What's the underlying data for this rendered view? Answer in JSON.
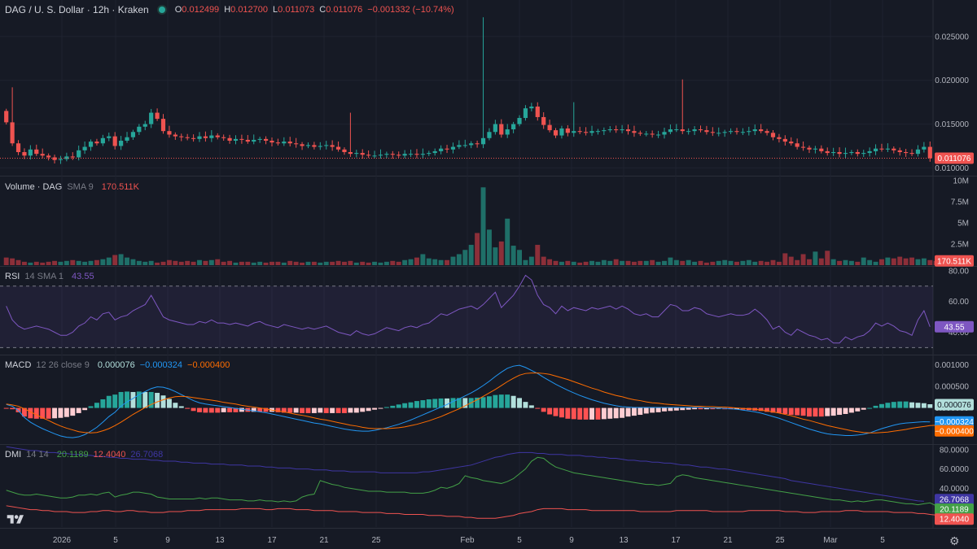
{
  "header": {
    "symbol": "DAG / U. S. Dollar · 12h · Kraken",
    "o_label": "O",
    "o": "0.012499",
    "h_label": "H",
    "h": "0.012700",
    "l_label": "L",
    "l": "0.011073",
    "c_label": "C",
    "c": "0.011076",
    "change": "−0.001332 (−10.74%)"
  },
  "volume_legend": {
    "title": "Volume · DAG",
    "params": "SMA 9",
    "value": "170.511K"
  },
  "rsi_legend": {
    "title": "RSI",
    "params": "14 SMA 1",
    "value": "43.55"
  },
  "macd_legend": {
    "title": "MACD",
    "params": "12 26 close 9",
    "hist": "0.000076",
    "macd": "−0.000324",
    "signal": "−0.000400"
  },
  "dmi_legend": {
    "title": "DMI",
    "params": "14 14",
    "plus": "20.1189",
    "minus": "12.4040",
    "adx": "26.7068"
  },
  "colors": {
    "up": "#26a69a",
    "down": "#ef5350",
    "rsi": "#7e57c2",
    "macd": "#2196f3",
    "signal": "#ff6d00",
    "adx": "#3f36a3",
    "plus_di": "#43a047",
    "minus_di": "#ef5350",
    "bg": "#161a25"
  },
  "chart_data": [
    {
      "type": "candlestick",
      "title": "DAG / U. S. Dollar · 12h · Kraken",
      "x_ticks": [
        "2026",
        "5",
        "9",
        "13",
        "17",
        "21",
        "25",
        "Feb",
        "5",
        "9",
        "13",
        "17",
        "21",
        "25",
        "Mar",
        "5"
      ],
      "y_ticks": [
        "0.025000",
        "0.020000",
        "0.015000",
        "0.010000"
      ],
      "ylim": [
        0.0092,
        0.0275
      ],
      "last_price_label": "0.011076",
      "close": [
        0.0152,
        0.0128,
        0.0118,
        0.0114,
        0.0121,
        0.0116,
        0.0114,
        0.0112,
        0.0109,
        0.011,
        0.0113,
        0.0112,
        0.012,
        0.0124,
        0.013,
        0.0128,
        0.0134,
        0.0136,
        0.0125,
        0.0131,
        0.0135,
        0.0141,
        0.0147,
        0.015,
        0.0163,
        0.0156,
        0.0142,
        0.0138,
        0.0136,
        0.0135,
        0.0134,
        0.0133,
        0.0136,
        0.0134,
        0.0137,
        0.0135,
        0.0134,
        0.0131,
        0.0133,
        0.0132,
        0.013,
        0.0132,
        0.0133,
        0.0131,
        0.0129,
        0.0128,
        0.013,
        0.0128,
        0.0127,
        0.0125,
        0.0126,
        0.0124,
        0.0125,
        0.0126,
        0.0124,
        0.0121,
        0.0118,
        0.0116,
        0.0117,
        0.0115,
        0.0114,
        0.0114,
        0.0115,
        0.0116,
        0.0115,
        0.0114,
        0.0116,
        0.0116,
        0.0115,
        0.0116,
        0.0117,
        0.0119,
        0.0122,
        0.0121,
        0.0124,
        0.0126,
        0.0126,
        0.0128,
        0.0127,
        0.0134,
        0.0141,
        0.015,
        0.0138,
        0.0144,
        0.015,
        0.0157,
        0.0168,
        0.017,
        0.0158,
        0.0149,
        0.0143,
        0.0137,
        0.0145,
        0.014,
        0.0142,
        0.0141,
        0.014,
        0.0142,
        0.0142,
        0.0143,
        0.0144,
        0.0143,
        0.0144,
        0.0142,
        0.014,
        0.0139,
        0.0139,
        0.0138,
        0.0138,
        0.0141,
        0.0144,
        0.0144,
        0.0142,
        0.0142,
        0.0144,
        0.0143,
        0.0141,
        0.014,
        0.014,
        0.0141,
        0.0142,
        0.0141,
        0.0141,
        0.0142,
        0.0144,
        0.0142,
        0.014,
        0.0135,
        0.0133,
        0.013,
        0.0128,
        0.0124,
        0.0123,
        0.0121,
        0.0122,
        0.0119,
        0.0117,
        0.0118,
        0.0116,
        0.0117,
        0.0118,
        0.0116,
        0.0117,
        0.0119,
        0.0122,
        0.0121,
        0.0122,
        0.012,
        0.0118,
        0.0117,
        0.0116,
        0.0121,
        0.0124,
        0.0111
      ]
    },
    {
      "type": "bar",
      "title": "Volume · DAG",
      "y_ticks": [
        "10M",
        "7.5M",
        "5M",
        "2.5M"
      ],
      "ylim": [
        0,
        10000000
      ],
      "last_value_label": "170.511K",
      "values_millions": [
        0.9,
        0.8,
        0.6,
        0.4,
        0.3,
        0.4,
        0.3,
        0.4,
        0.5,
        0.4,
        0.5,
        0.6,
        0.5,
        0.4,
        0.5,
        0.6,
        0.7,
        0.9,
        1.2,
        1.3,
        0.9,
        0.7,
        0.5,
        0.4,
        0.5,
        0.3,
        0.4,
        0.6,
        0.5,
        0.4,
        0.5,
        0.4,
        0.6,
        0.5,
        0.6,
        0.7,
        0.4,
        0.5,
        0.3,
        0.4,
        0.4,
        0.3,
        0.4,
        0.3,
        0.4,
        0.4,
        0.3,
        0.5,
        0.4,
        0.3,
        0.4,
        0.4,
        0.3,
        0.4,
        0.4,
        0.5,
        0.4,
        0.5,
        0.3,
        0.4,
        0.3,
        0.4,
        0.3,
        0.4,
        0.5,
        0.4,
        0.6,
        0.7,
        0.9,
        1.3,
        0.8,
        0.7,
        0.6,
        0.6,
        1.0,
        1.3,
        1.8,
        2.4,
        3.8,
        9.2,
        4.2,
        2.1,
        2.8,
        5.5,
        2.3,
        1.8,
        0.6,
        1.0,
        2.4,
        1.0,
        0.7,
        0.5,
        0.4,
        0.5,
        0.4,
        0.3,
        0.4,
        0.5,
        0.4,
        0.6,
        0.5,
        0.7,
        0.5,
        0.5,
        0.4,
        0.5,
        0.5,
        0.6,
        0.4,
        0.5,
        0.9,
        0.6,
        0.5,
        0.6,
        0.4,
        0.5,
        0.3,
        0.4,
        0.5,
        0.6,
        0.5,
        0.4,
        0.5,
        0.6,
        0.4,
        0.5,
        0.4,
        0.6,
        0.4,
        1.4,
        1.0,
        0.6,
        1.3,
        0.7,
        1.6,
        0.8,
        1.7,
        0.7,
        0.5,
        0.6,
        0.5,
        0.4,
        0.9,
        0.6,
        0.4,
        0.7,
        0.9,
        0.8,
        1.0,
        0.8,
        0.9,
        0.7,
        0.8,
        0.6,
        0.5,
        0.6,
        0.17
      ]
    },
    {
      "type": "line",
      "title": "RSI",
      "y_ticks": [
        "80.00",
        "60.00",
        "40.00"
      ],
      "bands": [
        70,
        30
      ],
      "ylim": [
        26,
        82
      ],
      "last_value_label": "43.55",
      "values": [
        57,
        48,
        44,
        42,
        43,
        44,
        43,
        42,
        40,
        38,
        38,
        40,
        44,
        46,
        50,
        48,
        52,
        53,
        48,
        50,
        51,
        54,
        56,
        58,
        64,
        57,
        50,
        48,
        47,
        46,
        45,
        45,
        47,
        46,
        48,
        46,
        46,
        45,
        46,
        45,
        44,
        46,
        47,
        45,
        44,
        43,
        45,
        44,
        43,
        42,
        43,
        42,
        43,
        44,
        42,
        40,
        39,
        38,
        41,
        39,
        38,
        39,
        41,
        43,
        42,
        41,
        43,
        44,
        43,
        45,
        46,
        49,
        52,
        51,
        53,
        55,
        56,
        57,
        55,
        58,
        62,
        66,
        56,
        60,
        64,
        70,
        77,
        74,
        64,
        58,
        56,
        52,
        57,
        54,
        56,
        55,
        54,
        56,
        55,
        56,
        57,
        55,
        57,
        55,
        52,
        51,
        52,
        50,
        50,
        54,
        58,
        57,
        54,
        54,
        56,
        55,
        52,
        51,
        50,
        51,
        52,
        51,
        51,
        52,
        55,
        52,
        48,
        42,
        44,
        40,
        38,
        42,
        40,
        38,
        37,
        35,
        36,
        33,
        33,
        37,
        35,
        37,
        38,
        41,
        46,
        44,
        46,
        44,
        41,
        40,
        38,
        48,
        54,
        43.55
      ]
    },
    {
      "type": "bar+line",
      "title": "MACD",
      "y_ticks": [
        "0.001000",
        "0.000500",
        "0.000000",
        "−0.000324",
        "−0.000400"
      ],
      "ylim": [
        -0.00082,
        0.0012
      ],
      "macd": [
        8e-05,
        4e-05,
        -6e-05,
        -0.00022,
        -0.00033,
        -0.00041,
        -0.00048,
        -0.00054,
        -0.0006,
        -0.00065,
        -0.00068,
        -0.00069,
        -0.00067,
        -0.00062,
        -0.00054,
        -0.00045,
        -0.00033,
        -0.0002,
        -0.0001,
        4e-05,
        0.00014,
        0.00022,
        0.00031,
        0.00038,
        0.00045,
        0.00049,
        0.00048,
        0.00044,
        0.00038,
        0.00031,
        0.00024,
        0.00017,
        0.00012,
        9e-05,
        7e-05,
        5e-05,
        3e-05,
        1e-05,
        -1e-05,
        -3e-05,
        -5e-05,
        -7e-05,
        -9e-05,
        -0.00011,
        -0.00014,
        -0.00017,
        -0.0002,
        -0.00023,
        -0.00026,
        -0.00029,
        -0.00032,
        -0.00035,
        -0.00037,
        -0.0004,
        -0.00043,
        -0.00046,
        -0.00049,
        -0.00051,
        -0.00053,
        -0.00054,
        -0.00054,
        -0.00052,
        -0.00049,
        -0.00046,
        -0.00042,
        -0.00038,
        -0.00033,
        -0.00028,
        -0.00022,
        -0.00016,
        -0.0001,
        -4e-05,
        2e-05,
        8e-05,
        0.00015,
        0.00021,
        0.00028,
        0.00035,
        0.00043,
        0.00052,
        0.00062,
        0.00073,
        0.00083,
        0.00092,
        0.00097,
        0.00099,
        0.00094,
        0.00087,
        0.0008,
        0.00071,
        0.00063,
        0.00055,
        0.00048,
        0.00041,
        0.00035,
        0.00029,
        0.00024,
        0.00019,
        0.00015,
        0.00011,
        8e-05,
        5e-05,
        3e-05,
        2e-05,
        1e-05,
        1e-05,
        1e-05,
        1e-05,
        1e-05,
        1e-05,
        1e-05,
        1e-05,
        1e-05,
        1e-05,
        1e-05,
        1e-05,
        0.0,
        0.0,
        0.0,
        -1e-05,
        -2e-05,
        -3e-05,
        -5e-05,
        -7e-05,
        -9e-05,
        -0.00012,
        -0.00016,
        -0.0002,
        -0.00024,
        -0.00029,
        -0.00034,
        -0.00039,
        -0.00044,
        -0.00049,
        -0.00053,
        -0.00057,
        -0.0006,
        -0.00062,
        -0.00063,
        -0.00064,
        -0.00064,
        -0.00063,
        -0.00061,
        -0.00058,
        -0.00053,
        -0.00048,
        -0.00044,
        -0.0004,
        -0.00037,
        -0.00035,
        -0.00034,
        -0.00033,
        -0.00032,
        -0.000324
      ],
      "signal": [
        9e-05,
        7e-05,
        4e-05,
        -2e-05,
        -9e-05,
        -0.00016,
        -0.00023,
        -0.00029,
        -0.00036,
        -0.00042,
        -0.00047,
        -0.00051,
        -0.00055,
        -0.00057,
        -0.00058,
        -0.00057,
        -0.00053,
        -0.00048,
        -0.00041,
        -0.00033,
        -0.00024,
        -0.00015,
        -7e-05,
        1e-05,
        8e-05,
        0.00014,
        0.00019,
        0.00023,
        0.00026,
        0.00027,
        0.00026,
        0.00024,
        0.00022,
        0.0002,
        0.00018,
        0.00016,
        0.00013,
        0.00011,
        9e-05,
        6e-05,
        4e-05,
        2e-05,
        0.0,
        -2e-05,
        -5e-05,
        -7e-05,
        -9e-05,
        -0.00012,
        -0.00015,
        -0.00017,
        -0.0002,
        -0.00023,
        -0.00026,
        -0.00028,
        -0.00031,
        -0.00034,
        -0.00037,
        -0.0004,
        -0.00042,
        -0.00045,
        -0.00047,
        -0.00048,
        -0.00048,
        -0.00048,
        -0.00047,
        -0.00046,
        -0.00044,
        -0.00041,
        -0.00038,
        -0.00034,
        -0.0003,
        -0.00025,
        -0.0002,
        -0.00014,
        -8e-05,
        -2e-05,
        5e-05,
        0.00012,
        0.00019,
        0.00027,
        0.00035,
        0.00043,
        0.00052,
        0.00061,
        0.00069,
        0.00076,
        0.0008,
        0.00081,
        0.00081,
        0.0008,
        0.00078,
        0.00074,
        0.0007,
        0.00066,
        0.00061,
        0.00056,
        0.00051,
        0.00046,
        0.00042,
        0.00037,
        0.00033,
        0.00029,
        0.00026,
        0.00022,
        0.00019,
        0.00017,
        0.00014,
        0.00012,
        0.00011,
        9e-05,
        8e-05,
        7e-05,
        6e-05,
        5e-05,
        4e-05,
        4e-05,
        3e-05,
        3e-05,
        2e-05,
        2e-05,
        1e-05,
        0.0,
        -1e-05,
        -2e-05,
        -3e-05,
        -5e-05,
        -7e-05,
        -9e-05,
        -0.00012,
        -0.00015,
        -0.00018,
        -0.00022,
        -0.00026,
        -0.00029,
        -0.00033,
        -0.00037,
        -0.00041,
        -0.00044,
        -0.00047,
        -0.0005,
        -0.00053,
        -0.00055,
        -0.00057,
        -0.00058,
        -0.00058,
        -0.00057,
        -0.00056,
        -0.00054,
        -0.00052,
        -0.0005,
        -0.00047,
        -0.00045,
        -0.00043,
        -0.00041,
        -0.0004
      ]
    },
    {
      "type": "line",
      "title": "DMI",
      "y_ticks": [
        "80.0000",
        "60.0000",
        "40.0000"
      ],
      "ylim": [
        0,
        84
      ],
      "adx": [
        83,
        82,
        81,
        80,
        79,
        79,
        78,
        77,
        77,
        76,
        76,
        75,
        75,
        74,
        74,
        73,
        73,
        72,
        72,
        71,
        71,
        70,
        70,
        70,
        69,
        69,
        68,
        68,
        68,
        67,
        67,
        66,
        66,
        66,
        65,
        65,
        65,
        64,
        64,
        64,
        63,
        63,
        63,
        62,
        62,
        61,
        61,
        61,
        60,
        60,
        60,
        59,
        59,
        59,
        58,
        58,
        58,
        57,
        57,
        57,
        57,
        57,
        56,
        56,
        56,
        56,
        56,
        56,
        56,
        57,
        57,
        58,
        59,
        60,
        61,
        62,
        63,
        64,
        66,
        68,
        70,
        72,
        73,
        75,
        76,
        77,
        77,
        77,
        76,
        76,
        75,
        75,
        75,
        74,
        74,
        74,
        73,
        73,
        72,
        72,
        71,
        71,
        70,
        69,
        69,
        68,
        68,
        67,
        67,
        66,
        66,
        65,
        64,
        64,
        63,
        62,
        62,
        61,
        60,
        60,
        59,
        58,
        57,
        56,
        55,
        54,
        53,
        52,
        51,
        50,
        48,
        47,
        46,
        45,
        44,
        43,
        42,
        41,
        40,
        39,
        38,
        37,
        36,
        35,
        34,
        33,
        32,
        31,
        30,
        29,
        28,
        27,
        26.7068
      ],
      "plus_di": [
        38,
        36,
        34,
        33,
        33,
        34,
        33,
        32,
        31,
        30,
        30,
        31,
        33,
        33,
        34,
        33,
        35,
        36,
        31,
        33,
        34,
        36,
        36,
        35,
        34,
        31,
        30,
        29,
        29,
        29,
        29,
        29,
        30,
        29,
        30,
        30,
        29,
        28,
        28,
        28,
        27,
        27,
        28,
        27,
        27,
        26,
        27,
        26,
        27,
        31,
        33,
        34,
        48,
        46,
        44,
        43,
        41,
        40,
        39,
        38,
        37,
        37,
        37,
        36,
        36,
        36,
        36,
        35,
        35,
        35,
        36,
        38,
        41,
        40,
        42,
        45,
        53,
        51,
        50,
        48,
        47,
        46,
        45,
        47,
        50,
        55,
        60,
        68,
        72,
        71,
        66,
        62,
        60,
        58,
        56,
        55,
        54,
        53,
        52,
        51,
        50,
        49,
        48,
        47,
        46,
        45,
        44,
        44,
        43,
        44,
        45,
        52,
        54,
        53,
        51,
        50,
        49,
        48,
        47,
        46,
        45,
        44,
        43,
        42,
        41,
        40,
        39,
        38,
        37,
        36,
        35,
        34,
        33,
        32,
        31,
        30,
        29,
        28,
        28,
        27,
        26,
        27,
        26,
        27,
        28,
        28,
        27,
        26,
        25,
        24,
        24,
        23,
        24,
        25,
        22,
        20.1189
      ],
      "minus_di": [
        22,
        21,
        20,
        19,
        18,
        18,
        17,
        17,
        16,
        16,
        16,
        15,
        15,
        15,
        16,
        16,
        17,
        17,
        16,
        16,
        17,
        17,
        16,
        16,
        15,
        15,
        15,
        16,
        16,
        16,
        17,
        17,
        17,
        18,
        18,
        18,
        18,
        18,
        18,
        19,
        19,
        19,
        19,
        18,
        18,
        19,
        19,
        19,
        18,
        18,
        18,
        17,
        17,
        17,
        17,
        16,
        16,
        16,
        16,
        15,
        15,
        15,
        15,
        14,
        14,
        14,
        13,
        13,
        13,
        13,
        12,
        12,
        12,
        11,
        11,
        11,
        10,
        10,
        9,
        9,
        9,
        9,
        10,
        11,
        12,
        14,
        15,
        16,
        18,
        19,
        19,
        19,
        19,
        18,
        18,
        18,
        18,
        17,
        17,
        17,
        17,
        17,
        17,
        17,
        17,
        16,
        16,
        16,
        16,
        16,
        16,
        17,
        17,
        17,
        17,
        17,
        17,
        16,
        16,
        16,
        16,
        16,
        16,
        17,
        17,
        17,
        17,
        17,
        17,
        16,
        16,
        16,
        15,
        15,
        15,
        16,
        16,
        16,
        16,
        17,
        17,
        17,
        16,
        16,
        16,
        16,
        16,
        15,
        15,
        15,
        15,
        14,
        14,
        13,
        12.404
      ]
    }
  ]
}
